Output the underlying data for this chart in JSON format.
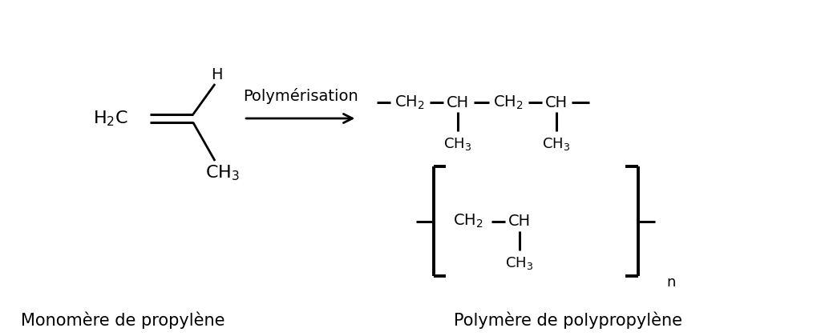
{
  "bg_color": "#ffffff",
  "line_color": "#000000",
  "text_color": "#000000",
  "font_size_formula": 13,
  "font_size_label": 15,
  "font_size_arrow_label": 14,
  "title": "Polymérisation",
  "label_left": "Monomère de propylène",
  "label_right": "Polymère de polypropylène"
}
